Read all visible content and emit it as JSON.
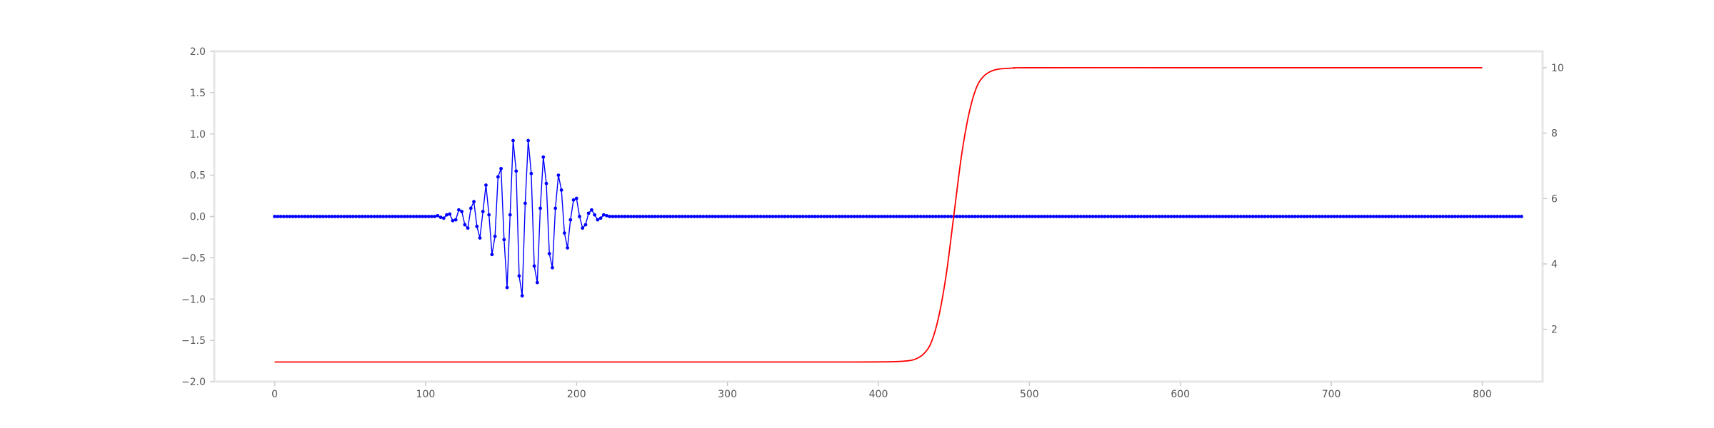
{
  "chart_data": {
    "type": "line",
    "title": "",
    "xlabel": "",
    "ylabel": "",
    "y2label": "",
    "grid": false,
    "xlim": [
      -40,
      840
    ],
    "ylim": [
      -2.0,
      2.0
    ],
    "y2lim": [
      0.4,
      10.5
    ],
    "x_ticks": [
      0,
      100,
      200,
      300,
      400,
      500,
      600,
      700,
      800
    ],
    "x_tick_labels": [
      "0",
      "100",
      "200",
      "300",
      "400",
      "500",
      "600",
      "700",
      "800"
    ],
    "y_ticks": [
      -2.0,
      -1.5,
      -1.0,
      -0.5,
      0.0,
      0.5,
      1.0,
      1.5,
      2.0
    ],
    "y_tick_labels": [
      "−2.0",
      "−1.5",
      "−1.0",
      "−0.5",
      "0.0",
      "0.5",
      "1.0",
      "1.5",
      "2.0"
    ],
    "y2_ticks": [
      2,
      4,
      6,
      8,
      10
    ],
    "y2_tick_labels": [
      "2",
      "4",
      "6",
      "8",
      "10"
    ],
    "series": [
      {
        "axis": "left",
        "color": "#0000ff",
        "marker": "dot",
        "x_start": 0,
        "x_step": 2,
        "values": [
          0,
          0,
          0,
          0,
          0,
          0,
          0,
          0,
          0,
          0,
          0,
          0,
          0,
          0,
          0,
          0,
          0,
          0,
          0,
          0,
          0,
          0,
          0,
          0,
          0,
          0,
          0,
          0,
          0,
          0,
          0,
          0,
          0,
          0,
          0,
          0,
          0,
          0,
          0,
          0,
          0,
          0,
          0,
          0,
          0,
          0,
          0,
          0,
          0,
          0,
          0,
          0,
          0,
          0,
          0.01,
          -0.01,
          -0.02,
          0.02,
          0.03,
          -0.05,
          -0.04,
          0.08,
          0.06,
          -0.1,
          -0.14,
          0.1,
          0.18,
          -0.12,
          -0.26,
          0.06,
          0.38,
          0.02,
          -0.46,
          -0.24,
          0.48,
          0.58,
          -0.28,
          -0.86,
          0.02,
          0.92,
          0.55,
          -0.72,
          -0.96,
          0.16,
          0.92,
          0.52,
          -0.6,
          -0.8,
          0.1,
          0.72,
          0.4,
          -0.45,
          -0.62,
          0.1,
          0.5,
          0.32,
          -0.2,
          -0.38,
          -0.04,
          0.2,
          0.22,
          0,
          -0.14,
          -0.1,
          0.04,
          0.08,
          0.02,
          -0.04,
          -0.02,
          0.02,
          0.01,
          0,
          0,
          0,
          0,
          0,
          0,
          0,
          0,
          0,
          0,
          0,
          0,
          0,
          0,
          0,
          0,
          0,
          0,
          0,
          0,
          0,
          0,
          0,
          0,
          0,
          0,
          0,
          0,
          0,
          0,
          0,
          0,
          0,
          0,
          0,
          0,
          0,
          0,
          0,
          0,
          0,
          0,
          0,
          0,
          0,
          0,
          0,
          0,
          0,
          0,
          0,
          0,
          0,
          0,
          0,
          0,
          0,
          0,
          0,
          0,
          0,
          0,
          0,
          0,
          0,
          0,
          0,
          0,
          0,
          0,
          0,
          0,
          0,
          0,
          0,
          0,
          0,
          0,
          0,
          0,
          0,
          0,
          0,
          0,
          0,
          0,
          0,
          0,
          0,
          0,
          0,
          0,
          0,
          0,
          0,
          0,
          0,
          0,
          0,
          0,
          0,
          0,
          0,
          0,
          0,
          0,
          0,
          0,
          0,
          0,
          0,
          0,
          0,
          0,
          0,
          0,
          0,
          0,
          0,
          0,
          0,
          0,
          0,
          0,
          0,
          0,
          0,
          0,
          0,
          0,
          0,
          0,
          0,
          0,
          0,
          0,
          0,
          0,
          0,
          0,
          0,
          0,
          0,
          0,
          0,
          0,
          0,
          0,
          0,
          0,
          0,
          0,
          0,
          0,
          0,
          0,
          0,
          0,
          0,
          0,
          0,
          0,
          0,
          0,
          0,
          0,
          0,
          0,
          0,
          0,
          0,
          0,
          0,
          0,
          0,
          0,
          0,
          0,
          0,
          0,
          0,
          0,
          0,
          0,
          0,
          0,
          0,
          0,
          0,
          0,
          0,
          0,
          0,
          0,
          0,
          0,
          0,
          0,
          0,
          0,
          0,
          0,
          0,
          0,
          0,
          0,
          0,
          0,
          0,
          0,
          0,
          0,
          0,
          0,
          0,
          0,
          0,
          0,
          0,
          0,
          0,
          0,
          0,
          0,
          0,
          0,
          0,
          0,
          0,
          0,
          0,
          0,
          0,
          0,
          0,
          0,
          0,
          0,
          0,
          0,
          0,
          0,
          0,
          0,
          0,
          0,
          0,
          0,
          0,
          0,
          0,
          0,
          0,
          0,
          0,
          0,
          0,
          0,
          0,
          0,
          0,
          0,
          0,
          0,
          0,
          0,
          0,
          0,
          0,
          0,
          0,
          0,
          0,
          0,
          0,
          0,
          0,
          0,
          0,
          0,
          0,
          0,
          0,
          0,
          0,
          0,
          0,
          0,
          0,
          0,
          0,
          0,
          0,
          0,
          0,
          0,
          0,
          0,
          0,
          0,
          0,
          0,
          0
        ]
      },
      {
        "axis": "right",
        "color": "#ff0000",
        "marker": "none",
        "x": [
          0,
          100,
          200,
          300,
          380,
          410,
          420,
          425,
          430,
          435,
          440,
          445,
          450,
          455,
          460,
          465,
          470,
          475,
          480,
          490,
          500,
          600,
          700,
          800
        ],
        "values": [
          1.0,
          1.0,
          1.0,
          1.0,
          1.0,
          1.01,
          1.04,
          1.1,
          1.25,
          1.6,
          2.4,
          3.7,
          5.5,
          7.3,
          8.6,
          9.4,
          9.75,
          9.9,
          9.96,
          9.99,
          10.0,
          10.0,
          10.0,
          10.0
        ]
      }
    ]
  }
}
